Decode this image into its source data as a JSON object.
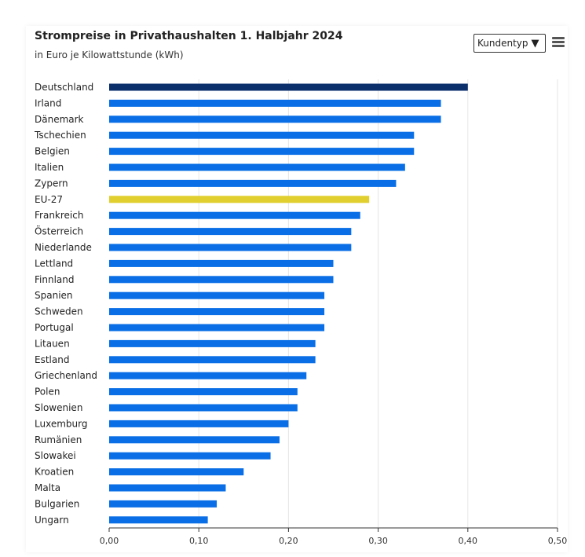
{
  "header": {
    "title": "Strompreise in Privathaushalten 1. Halbjahr 2024",
    "subtitle": "in Euro je Kilowattstunde (kWh)"
  },
  "controls": {
    "dropdown_label": "Kundentyp",
    "dropdown_arrow": "▼",
    "menu_icon": "hamburger-menu-icon"
  },
  "colors": {
    "default": "#0a6fe6",
    "highlight_germany": "#0a2f6b",
    "highlight_eu": "#e0cf2e"
  },
  "chart_data": {
    "type": "bar",
    "orientation": "horizontal",
    "title": "Strompreise in Privathaushalten 1. Halbjahr 2024",
    "subtitle": "in Euro je Kilowattstunde (kWh)",
    "categories": [
      "Deutschland",
      "Irland",
      "Dänemark",
      "Tschechien",
      "Belgien",
      "Italien",
      "Zypern",
      "EU-27",
      "Frankreich",
      "Österreich",
      "Niederlande",
      "Lettland",
      "Finnland",
      "Spanien",
      "Schweden",
      "Portugal",
      "Litauen",
      "Estland",
      "Griechenland",
      "Polen",
      "Slowenien",
      "Luxemburg",
      "Rumänien",
      "Slowakei",
      "Kroatien",
      "Malta",
      "Bulgarien",
      "Ungarn"
    ],
    "values": [
      0.4,
      0.37,
      0.37,
      0.34,
      0.34,
      0.33,
      0.32,
      0.29,
      0.28,
      0.27,
      0.27,
      0.25,
      0.25,
      0.24,
      0.24,
      0.24,
      0.23,
      0.23,
      0.22,
      0.21,
      0.21,
      0.2,
      0.19,
      0.18,
      0.15,
      0.13,
      0.12,
      0.11
    ],
    "highlights": {
      "Deutschland": "#0a2f6b",
      "EU-27": "#e0cf2e"
    },
    "xlim": [
      0,
      0.5
    ],
    "xticks": [
      "0,00",
      "0,10",
      "0,20",
      "0,30",
      "0,40",
      "0,50"
    ],
    "grid": true
  }
}
